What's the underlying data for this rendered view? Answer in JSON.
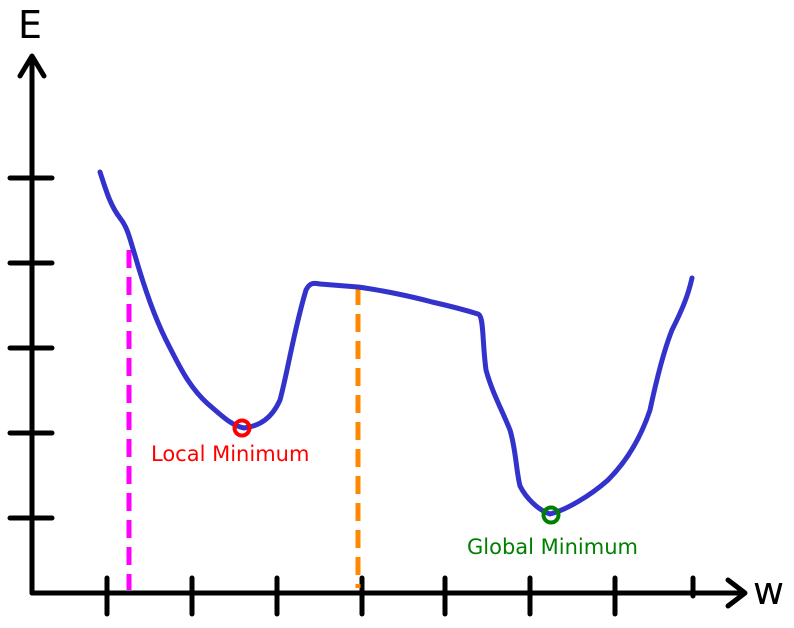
{
  "axes": {
    "y_label": "E",
    "x_label": "w"
  },
  "annotations": {
    "local_minimum": {
      "label": "Local Minimum",
      "color": "#ff0000"
    },
    "global_minimum": {
      "label": "Global Minimum",
      "color": "#008000"
    }
  },
  "colors": {
    "axis": "#000000",
    "curve": "#3333cc",
    "dashed_line_left": "#ff00ff",
    "dashed_line_right": "#ff8800"
  },
  "chart_data": {
    "type": "line",
    "title": "",
    "xlabel": "w",
    "ylabel": "E",
    "grid": false,
    "x_ticks": 8,
    "y_ticks": 5
  }
}
